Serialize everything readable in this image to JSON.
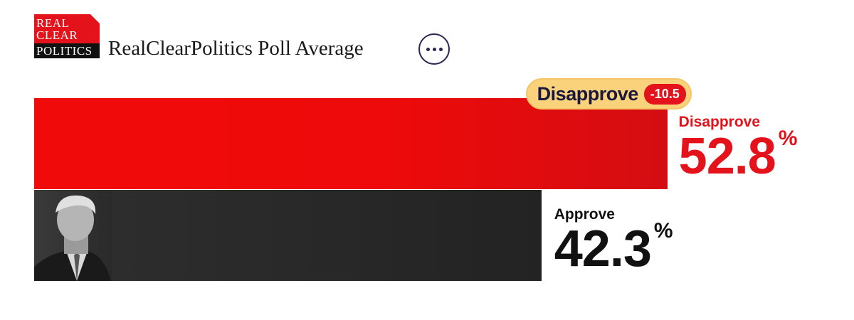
{
  "header": {
    "logo_lines": [
      "REAL",
      "CLEAR",
      "POLITICS"
    ],
    "title": "RealClearPolitics Poll Average"
  },
  "colors": {
    "disapprove": "#e4121b",
    "approve": "#262626",
    "spread_pill": "#f9d27b",
    "spread_badge": "#e4121b"
  },
  "chart_data": {
    "type": "bar",
    "orientation": "horizontal",
    "title": "RealClearPolitics Poll Average",
    "categories": [
      "Disapprove",
      "Approve"
    ],
    "values": [
      52.8,
      42.3
    ],
    "value_labels": [
      "52.8",
      "42.3"
    ],
    "unit": "%",
    "spread": {
      "label": "Disapprove",
      "value": "-10.5"
    },
    "grid": false,
    "legend": "none"
  }
}
